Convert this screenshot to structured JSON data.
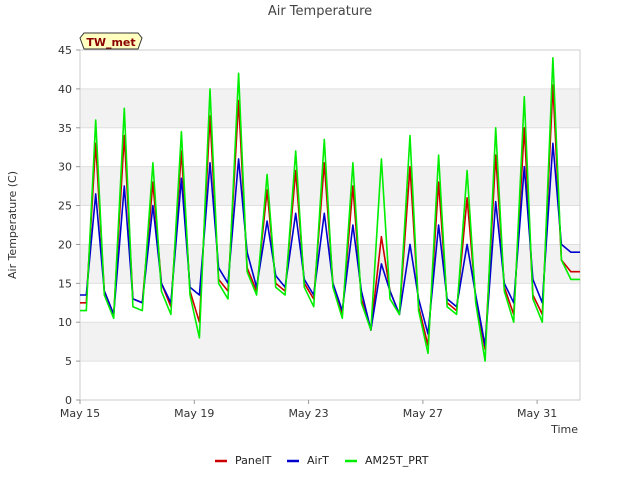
{
  "chart_data": {
    "type": "line",
    "title": "Air Temperature",
    "xlabel": "Time",
    "ylabel": "Air Temperature (C)",
    "badge": "TW_met",
    "ylim": [
      0,
      45
    ],
    "yticks": [
      0,
      5,
      10,
      15,
      20,
      25,
      30,
      35,
      40,
      45
    ],
    "xlim": [
      15.0,
      32.5
    ],
    "xticks": [
      {
        "value": 15,
        "label": "May 15"
      },
      {
        "value": 19,
        "label": "May 19"
      },
      {
        "value": 23,
        "label": "May 23"
      },
      {
        "value": 27,
        "label": "May 27"
      },
      {
        "value": 31,
        "label": "May 31"
      }
    ],
    "grid": "horizontal-bands",
    "legend_position": "bottom",
    "series": [
      {
        "name": "PanelT",
        "color": "#cc0000",
        "x": [
          15.0,
          15.22,
          15.55,
          15.85,
          16.18,
          16.55,
          16.85,
          17.18,
          17.55,
          17.85,
          18.18,
          18.55,
          18.85,
          19.18,
          19.55,
          19.85,
          20.18,
          20.55,
          20.85,
          21.18,
          21.55,
          21.85,
          22.18,
          22.55,
          22.85,
          23.18,
          23.55,
          23.85,
          24.18,
          24.55,
          24.85,
          25.18,
          25.55,
          25.85,
          26.18,
          26.55,
          26.85,
          27.18,
          27.55,
          27.85,
          28.18,
          28.55,
          28.85,
          29.18,
          29.55,
          29.85,
          30.18,
          30.55,
          30.85,
          31.18,
          31.55,
          31.85,
          32.18,
          32.5
        ],
        "y": [
          12.5,
          12.5,
          33.0,
          14.0,
          11.0,
          34.0,
          13.0,
          12.5,
          28.0,
          15.0,
          12.0,
          32.0,
          14.0,
          10.0,
          36.5,
          15.5,
          14.0,
          38.5,
          17.0,
          14.0,
          27.0,
          15.0,
          14.0,
          29.5,
          15.0,
          13.0,
          30.5,
          15.0,
          11.0,
          27.5,
          13.0,
          9.0,
          21.0,
          14.0,
          11.0,
          30.0,
          12.0,
          7.0,
          28.0,
          12.5,
          11.5,
          26.0,
          13.0,
          6.5,
          31.5,
          14.5,
          11.0,
          35.0,
          13.5,
          11.0,
          40.5,
          18.0,
          16.5,
          16.5
        ]
      },
      {
        "name": "AirT",
        "color": "#0000cc",
        "x": [
          15.0,
          15.22,
          15.55,
          15.85,
          16.18,
          16.55,
          16.85,
          17.18,
          17.55,
          17.85,
          18.18,
          18.55,
          18.85,
          19.18,
          19.55,
          19.85,
          20.18,
          20.55,
          20.85,
          21.18,
          21.55,
          21.85,
          22.18,
          22.55,
          22.85,
          23.18,
          23.55,
          23.85,
          24.18,
          24.55,
          24.85,
          25.18,
          25.55,
          25.85,
          26.18,
          26.55,
          26.85,
          27.18,
          27.55,
          27.85,
          28.18,
          28.55,
          28.85,
          29.18,
          29.55,
          29.85,
          30.18,
          30.55,
          30.85,
          31.18,
          31.55,
          31.85,
          32.18,
          32.5
        ],
        "y": [
          13.5,
          13.5,
          26.5,
          14.0,
          11.0,
          27.5,
          13.0,
          12.5,
          25.0,
          15.0,
          12.5,
          28.5,
          14.5,
          13.5,
          30.5,
          17.0,
          15.0,
          31.0,
          19.0,
          14.5,
          23.0,
          16.0,
          14.5,
          24.0,
          15.5,
          13.5,
          24.0,
          15.0,
          11.5,
          22.5,
          14.0,
          9.0,
          17.5,
          14.0,
          11.0,
          20.0,
          13.0,
          8.5,
          22.5,
          13.0,
          12.0,
          20.0,
          13.5,
          7.0,
          25.5,
          15.0,
          12.5,
          30.0,
          15.5,
          12.5,
          33.0,
          20.0,
          19.0,
          19.0
        ]
      },
      {
        "name": "AM25T_PRT",
        "color": "#00ee00",
        "x": [
          15.0,
          15.22,
          15.55,
          15.85,
          16.18,
          16.55,
          16.85,
          17.18,
          17.55,
          17.85,
          18.18,
          18.55,
          18.85,
          19.18,
          19.55,
          19.85,
          20.18,
          20.55,
          20.85,
          21.18,
          21.55,
          21.85,
          22.18,
          22.55,
          22.85,
          23.18,
          23.55,
          23.85,
          24.18,
          24.55,
          24.85,
          25.18,
          25.55,
          25.85,
          26.18,
          26.55,
          26.85,
          27.18,
          27.55,
          27.85,
          28.18,
          28.55,
          28.85,
          29.18,
          29.55,
          29.85,
          30.18,
          30.55,
          30.85,
          31.18,
          31.55,
          31.85,
          32.18,
          32.5
        ],
        "y": [
          11.5,
          11.5,
          36.0,
          13.5,
          10.5,
          37.5,
          12.0,
          11.5,
          30.5,
          14.0,
          11.0,
          34.5,
          13.5,
          8.0,
          40.0,
          15.0,
          13.0,
          42.0,
          16.5,
          13.5,
          29.0,
          14.5,
          13.5,
          32.0,
          14.5,
          12.0,
          33.5,
          14.5,
          10.5,
          30.5,
          12.5,
          9.0,
          31.0,
          13.0,
          11.0,
          34.0,
          11.5,
          6.0,
          31.5,
          12.0,
          11.0,
          29.5,
          12.5,
          5.0,
          35.0,
          14.0,
          10.0,
          39.0,
          13.0,
          10.0,
          44.0,
          18.0,
          15.5,
          15.5
        ]
      }
    ]
  }
}
